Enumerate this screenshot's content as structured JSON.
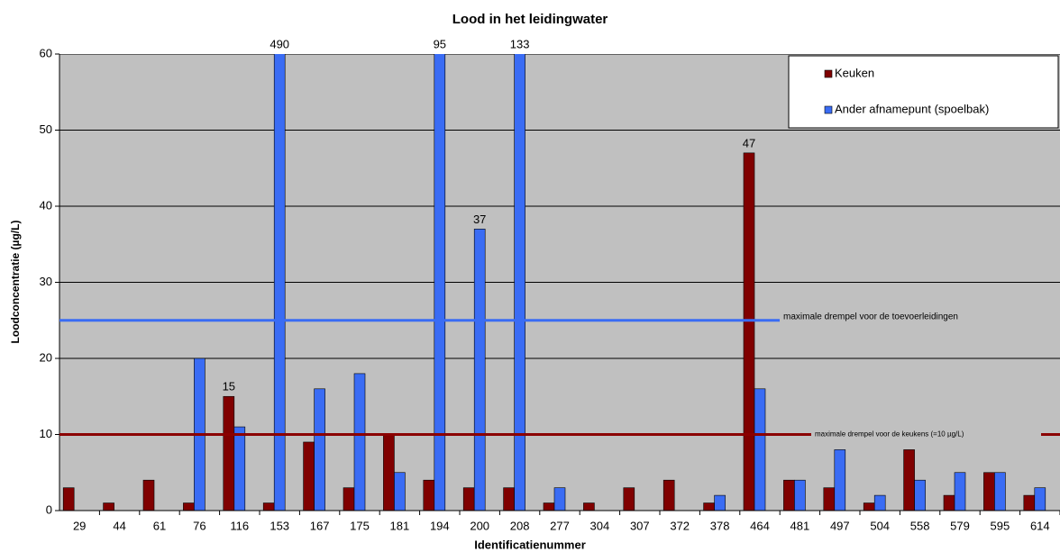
{
  "chart_data": {
    "type": "bar",
    "title": "Lood in het leidingwater",
    "x_label": "Identificatienummer",
    "y_label": "Loodconcentratie (µg/L)",
    "categories": [
      "29",
      "44",
      "61",
      "76",
      "116",
      "153",
      "167",
      "175",
      "181",
      "194",
      "200",
      "208",
      "277",
      "304",
      "307",
      "372",
      "378",
      "464",
      "481",
      "497",
      "504",
      "558",
      "579",
      "595",
      "614"
    ],
    "series": [
      {
        "name": "Keuken",
        "color": "#800000",
        "values": [
          3,
          1,
          4,
          1,
          15,
          1,
          9,
          3,
          10,
          4,
          3,
          3,
          1,
          1,
          3,
          4,
          1,
          47,
          4,
          3,
          1,
          8,
          2,
          5,
          2
        ],
        "value_labels": [
          null,
          null,
          null,
          null,
          "15",
          null,
          null,
          null,
          null,
          null,
          null,
          null,
          null,
          null,
          null,
          null,
          null,
          "47",
          null,
          null,
          null,
          null,
          null,
          null,
          null
        ]
      },
      {
        "name": "Ander afnamepunt (spoelbak)",
        "color": "#3a6cf4",
        "values": [
          null,
          null,
          null,
          20,
          11,
          490,
          16,
          18,
          5,
          95,
          37,
          133,
          3,
          null,
          null,
          null,
          2,
          16,
          4,
          8,
          2,
          4,
          5,
          5,
          3
        ],
        "value_labels": [
          null,
          null,
          null,
          null,
          null,
          "490",
          null,
          null,
          null,
          "95",
          "37",
          "133",
          null,
          null,
          null,
          null,
          null,
          null,
          null,
          null,
          null,
          null,
          null,
          null,
          null
        ]
      }
    ],
    "thresholds": [
      {
        "label": "maximale drempel voor de toevoerleidingen",
        "value": 25,
        "color": "#3a6cf4"
      },
      {
        "label": "maximale drempel voor de keukens (=10 µg/L)",
        "value": 10,
        "color": "#8b0000"
      }
    ],
    "ylim": [
      0,
      60
    ],
    "yticks": [
      0,
      10,
      20,
      30,
      40,
      50,
      60
    ],
    "grid": true,
    "legend": "top-right"
  }
}
